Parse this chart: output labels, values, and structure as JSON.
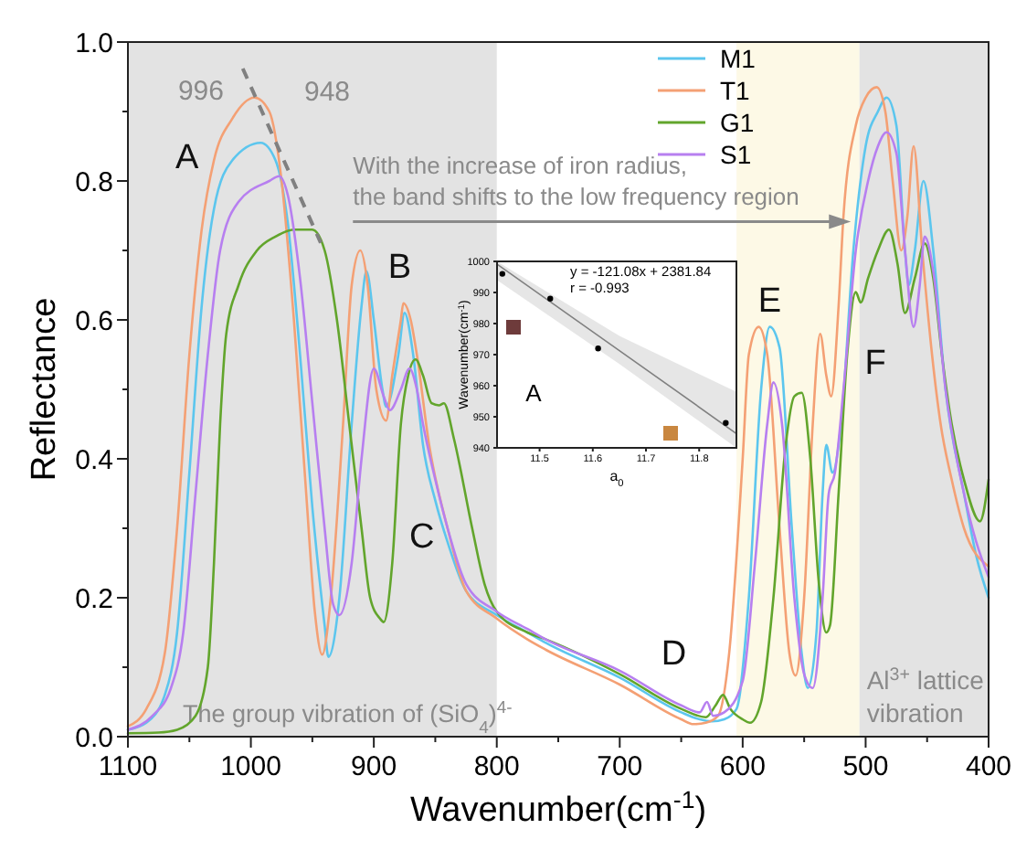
{
  "chart_data": [
    {
      "type": "line",
      "xlabel": "Wavenumber(cm$^{-1}$)",
      "ylabel": "Reflectance",
      "xlim": [
        1100,
        400
      ],
      "ylim": [
        0,
        1
      ],
      "xticks": [
        1100,
        {
          "value": 1050,
          "label": null
        },
        1000,
        {
          "value": 950,
          "label": null
        },
        900,
        {
          "value": 850,
          "label": null
        },
        800,
        {
          "value": 750,
          "label": null
        },
        700,
        {
          "value": 650,
          "label": null
        },
        600,
        {
          "value": 550,
          "label": null
        },
        500,
        {
          "value": 450,
          "label": null
        },
        400
      ],
      "yticks": [
        {
          "value": 0,
          "label": "0.0"
        },
        {
          "value": 0.1,
          "label": null
        },
        {
          "value": 0.2,
          "label": "0.2"
        },
        {
          "value": 0.3,
          "label": null
        },
        {
          "value": 0.4,
          "label": "0.4"
        },
        {
          "value": 0.5,
          "label": null
        },
        {
          "value": 0.6,
          "label": "0.6"
        },
        {
          "value": 0.7,
          "label": null
        },
        {
          "value": 0.8,
          "label": "0.8"
        },
        {
          "value": 0.9,
          "label": null
        },
        {
          "value": 1,
          "label": "1.0"
        }
      ],
      "grid": false,
      "legend": "top right",
      "line_style": "solid",
      "bands": [
        {
          "axis": "x",
          "from": 1100,
          "to": 800,
          "label": "The group vibration of (SiO$_{4}$)$^{4-}$",
          "color": "#e3e3e3"
        },
        {
          "axis": "x",
          "from": 605,
          "to": 505,
          "color": "#fdf9e6"
        },
        {
          "axis": "x",
          "from": 505,
          "to": 400,
          "label": "Al$^{3+}$ lattice vibration",
          "color": "#e3e3e3"
        }
      ],
      "series": [
        {
          "name": "M1",
          "color": "#5cc6ee",
          "x": [
            1100,
            1085,
            1070,
            1060,
            1050,
            1040,
            1030,
            1015,
            992,
            980,
            970,
            960,
            950,
            940,
            937,
            928,
            918,
            910,
            906,
            900,
            893,
            890,
            880,
            875,
            868,
            860,
            850,
            840,
            825,
            800,
            775,
            760,
            700,
            650,
            635,
            625,
            615,
            605,
            595,
            585,
            578,
            570,
            560,
            552,
            547,
            540,
            535,
            532,
            527,
            520,
            510,
            500,
            490,
            483,
            475,
            468,
            465,
            460,
            453,
            445,
            435,
            420,
            410,
            400
          ],
          "values": [
            0.01,
            0.02,
            0.06,
            0.15,
            0.38,
            0.62,
            0.76,
            0.83,
            0.855,
            0.83,
            0.74,
            0.55,
            0.33,
            0.16,
            0.115,
            0.2,
            0.45,
            0.62,
            0.67,
            0.6,
            0.5,
            0.475,
            0.55,
            0.61,
            0.55,
            0.42,
            0.34,
            0.28,
            0.21,
            0.175,
            0.15,
            0.135,
            0.085,
            0.035,
            0.025,
            0.022,
            0.025,
            0.04,
            0.2,
            0.5,
            0.59,
            0.56,
            0.3,
            0.12,
            0.07,
            0.15,
            0.35,
            0.42,
            0.38,
            0.45,
            0.7,
            0.85,
            0.9,
            0.92,
            0.88,
            0.7,
            0.65,
            0.7,
            0.8,
            0.7,
            0.5,
            0.35,
            0.26,
            0.2
          ]
        },
        {
          "name": "T1",
          "color": "#f4a074",
          "x": [
            1100,
            1085,
            1070,
            1060,
            1050,
            1040,
            1030,
            1015,
            997,
            985,
            975,
            965,
            955,
            948,
            942,
            935,
            925,
            918,
            911,
            905,
            898,
            890,
            885,
            878,
            876,
            870,
            865,
            855,
            840,
            825,
            800,
            775,
            760,
            700,
            650,
            640,
            630,
            620,
            611,
            600,
            595,
            587,
            580,
            570,
            562,
            557,
            550,
            543,
            537,
            532,
            528,
            522,
            518,
            508,
            500,
            491,
            484,
            478,
            471,
            466,
            461,
            454,
            446,
            439,
            430,
            420,
            400
          ],
          "values": [
            0.015,
            0.04,
            0.12,
            0.3,
            0.55,
            0.73,
            0.83,
            0.89,
            0.92,
            0.9,
            0.8,
            0.6,
            0.35,
            0.18,
            0.118,
            0.2,
            0.45,
            0.65,
            0.7,
            0.65,
            0.5,
            0.455,
            0.52,
            0.6,
            0.624,
            0.6,
            0.55,
            0.42,
            0.3,
            0.21,
            0.17,
            0.14,
            0.125,
            0.075,
            0.025,
            0.018,
            0.02,
            0.03,
            0.12,
            0.4,
            0.55,
            0.59,
            0.55,
            0.3,
            0.12,
            0.088,
            0.2,
            0.45,
            0.58,
            0.52,
            0.49,
            0.62,
            0.75,
            0.88,
            0.92,
            0.935,
            0.9,
            0.8,
            0.7,
            0.75,
            0.85,
            0.7,
            0.55,
            0.45,
            0.37,
            0.3,
            0.245
          ]
        },
        {
          "name": "G1",
          "color": "#62a52c",
          "x": [
            1100,
            1075,
            1060,
            1045,
            1035,
            1030,
            1025,
            1020,
            1010,
            995,
            980,
            965,
            950,
            940,
            930,
            920,
            910,
            903,
            895,
            892,
            885,
            878,
            872,
            866,
            860,
            853,
            847,
            843,
            835,
            820,
            810,
            800,
            775,
            760,
            700,
            650,
            630,
            622,
            616,
            610,
            600,
            594,
            585,
            575,
            565,
            558,
            552,
            545,
            538,
            532,
            529,
            522,
            515,
            508,
            504,
            498,
            490,
            481,
            474,
            468,
            460,
            452,
            445,
            438,
            430,
            420,
            407,
            400
          ],
          "values": [
            0.005,
            0.006,
            0.01,
            0.03,
            0.1,
            0.25,
            0.45,
            0.58,
            0.65,
            0.7,
            0.72,
            0.73,
            0.73,
            0.7,
            0.6,
            0.45,
            0.3,
            0.2,
            0.17,
            0.165,
            0.25,
            0.45,
            0.52,
            0.543,
            0.52,
            0.48,
            0.477,
            0.48,
            0.43,
            0.3,
            0.22,
            0.18,
            0.15,
            0.14,
            0.09,
            0.04,
            0.028,
            0.045,
            0.06,
            0.04,
            0.025,
            0.02,
            0.05,
            0.2,
            0.42,
            0.49,
            0.495,
            0.4,
            0.22,
            0.15,
            0.16,
            0.35,
            0.55,
            0.64,
            0.625,
            0.66,
            0.7,
            0.73,
            0.68,
            0.61,
            0.66,
            0.71,
            0.66,
            0.55,
            0.45,
            0.37,
            0.31,
            0.37
          ]
        },
        {
          "name": "S1",
          "color": "#b77ff0",
          "x": [
            1100,
            1080,
            1065,
            1055,
            1045,
            1035,
            1025,
            1010,
            985,
            977,
            970,
            960,
            950,
            940,
            933,
            928,
            918,
            910,
            900,
            892,
            887,
            878,
            871,
            865,
            860,
            850,
            840,
            825,
            800,
            775,
            760,
            700,
            650,
            635,
            629,
            624,
            615,
            600,
            590,
            580,
            575,
            568,
            558,
            550,
            543,
            535,
            530,
            525,
            518,
            508,
            498,
            490,
            483,
            475,
            468,
            461,
            456,
            452,
            445,
            435,
            420,
            410,
            400
          ],
          "values": [
            0.01,
            0.03,
            0.07,
            0.15,
            0.35,
            0.55,
            0.7,
            0.77,
            0.8,
            0.807,
            0.78,
            0.66,
            0.48,
            0.3,
            0.19,
            0.175,
            0.25,
            0.4,
            0.53,
            0.49,
            0.47,
            0.5,
            0.53,
            0.5,
            0.45,
            0.37,
            0.3,
            0.22,
            0.18,
            0.155,
            0.14,
            0.095,
            0.045,
            0.035,
            0.05,
            0.03,
            0.035,
            0.08,
            0.25,
            0.45,
            0.51,
            0.45,
            0.2,
            0.09,
            0.07,
            0.2,
            0.35,
            0.38,
            0.5,
            0.7,
            0.8,
            0.85,
            0.87,
            0.84,
            0.7,
            0.59,
            0.65,
            0.72,
            0.67,
            0.5,
            0.35,
            0.28,
            0.23
          ]
        }
      ],
      "annotations": [
        {
          "text": "996",
          "x": 996,
          "y": 0.92
        },
        "948",
        "A",
        "B",
        "C",
        "D",
        "E",
        "F",
        "With the increase of iron radius,",
        "the band shifts to the low frequency region"
      ]
    },
    {
      "type": "scatter",
      "xlabel": "a$_{0}$",
      "ylabel": "Wavenumber(cm$^{-1}$)",
      "xlim": [
        11.42,
        11.87
      ],
      "ylim": [
        940,
        1000
      ],
      "xticks": [
        11.5,
        11.6,
        11.7,
        11.8
      ],
      "yticks": [
        940,
        950,
        960,
        970,
        980,
        990,
        1000
      ],
      "grid": false,
      "series": [
        {
          "type": "line",
          "color": "#808080",
          "x": [
            11.42,
            11.65,
            11.87
          ],
          "values": [
            999.1,
            971.3,
            944.6
          ],
          "lower": [
            994,
            967,
            940
          ],
          "upper": [
            1000,
            976,
            958
          ]
        },
        {
          "type": "scatter",
          "color": "#000000",
          "marker": "circle",
          "x": [
            11.43,
            11.52,
            11.61,
            11.85
          ],
          "values": [
            996,
            988,
            972,
            948
          ]
        }
      ],
      "annotations": [
        "y = -121.08x + 2381.84",
        "r = -0.993",
        "A"
      ]
    }
  ]
}
